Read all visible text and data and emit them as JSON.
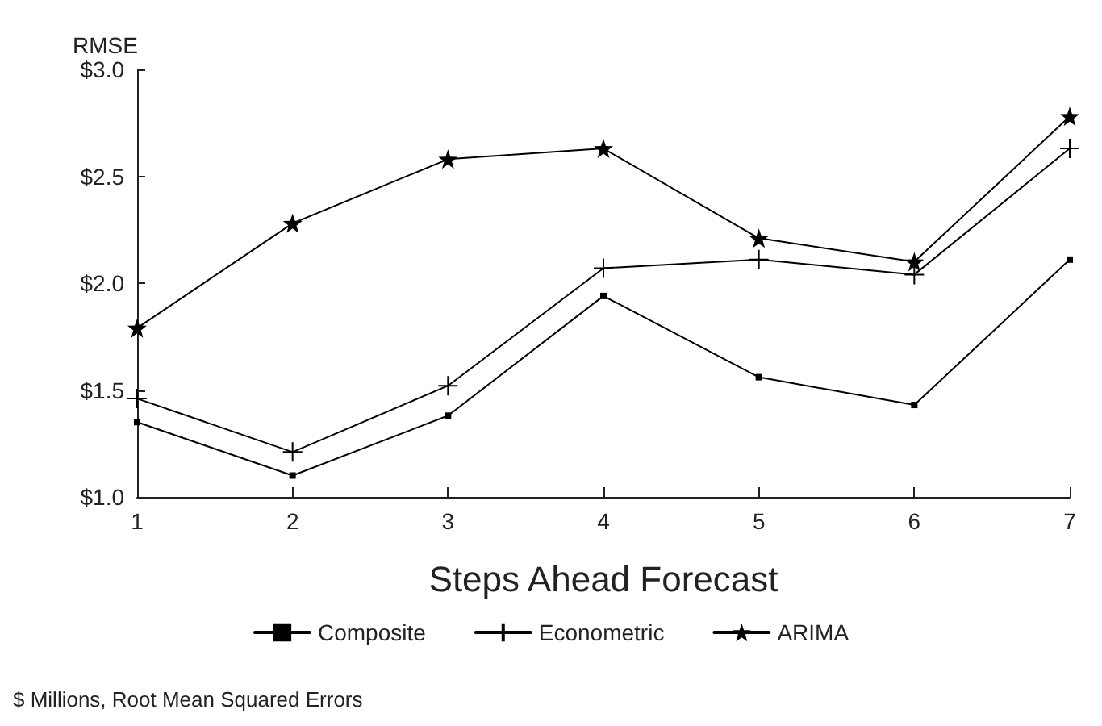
{
  "chart_data": {
    "type": "line",
    "ylabel": "RMSE",
    "xlabel": "Steps Ahead Forecast",
    "x": [
      1,
      2,
      3,
      4,
      5,
      6,
      7
    ],
    "xlim": [
      1,
      7
    ],
    "xticks": [
      1,
      2,
      3,
      4,
      5,
      6,
      7
    ],
    "ylim": [
      1.0,
      3.0
    ],
    "yticks": [
      {
        "value": 1.0,
        "label": "$1.0"
      },
      {
        "value": 1.5,
        "label": "$1.5"
      },
      {
        "value": 2.0,
        "label": "$2.0"
      },
      {
        "value": 2.5,
        "label": "$2.5"
      },
      {
        "value": 3.0,
        "label": "$3.0"
      }
    ],
    "series": [
      {
        "name": "Composite",
        "color": "#000000",
        "marker": "square",
        "values": [
          1.35,
          1.1,
          1.38,
          1.94,
          1.56,
          1.43,
          2.11
        ]
      },
      {
        "name": "Econometric",
        "color": "#000000",
        "marker": "cross",
        "values": [
          1.46,
          1.21,
          1.52,
          2.07,
          2.11,
          2.04,
          2.63
        ]
      },
      {
        "name": "ARIMA",
        "color": "#000000",
        "marker": "star",
        "values": [
          1.79,
          2.28,
          2.58,
          2.63,
          2.21,
          2.1,
          2.78
        ]
      }
    ],
    "legend": "bottom",
    "grid": false,
    "line_style": "solid",
    "annotations": [
      "$ Millions, Root Mean Squared Errors"
    ]
  }
}
